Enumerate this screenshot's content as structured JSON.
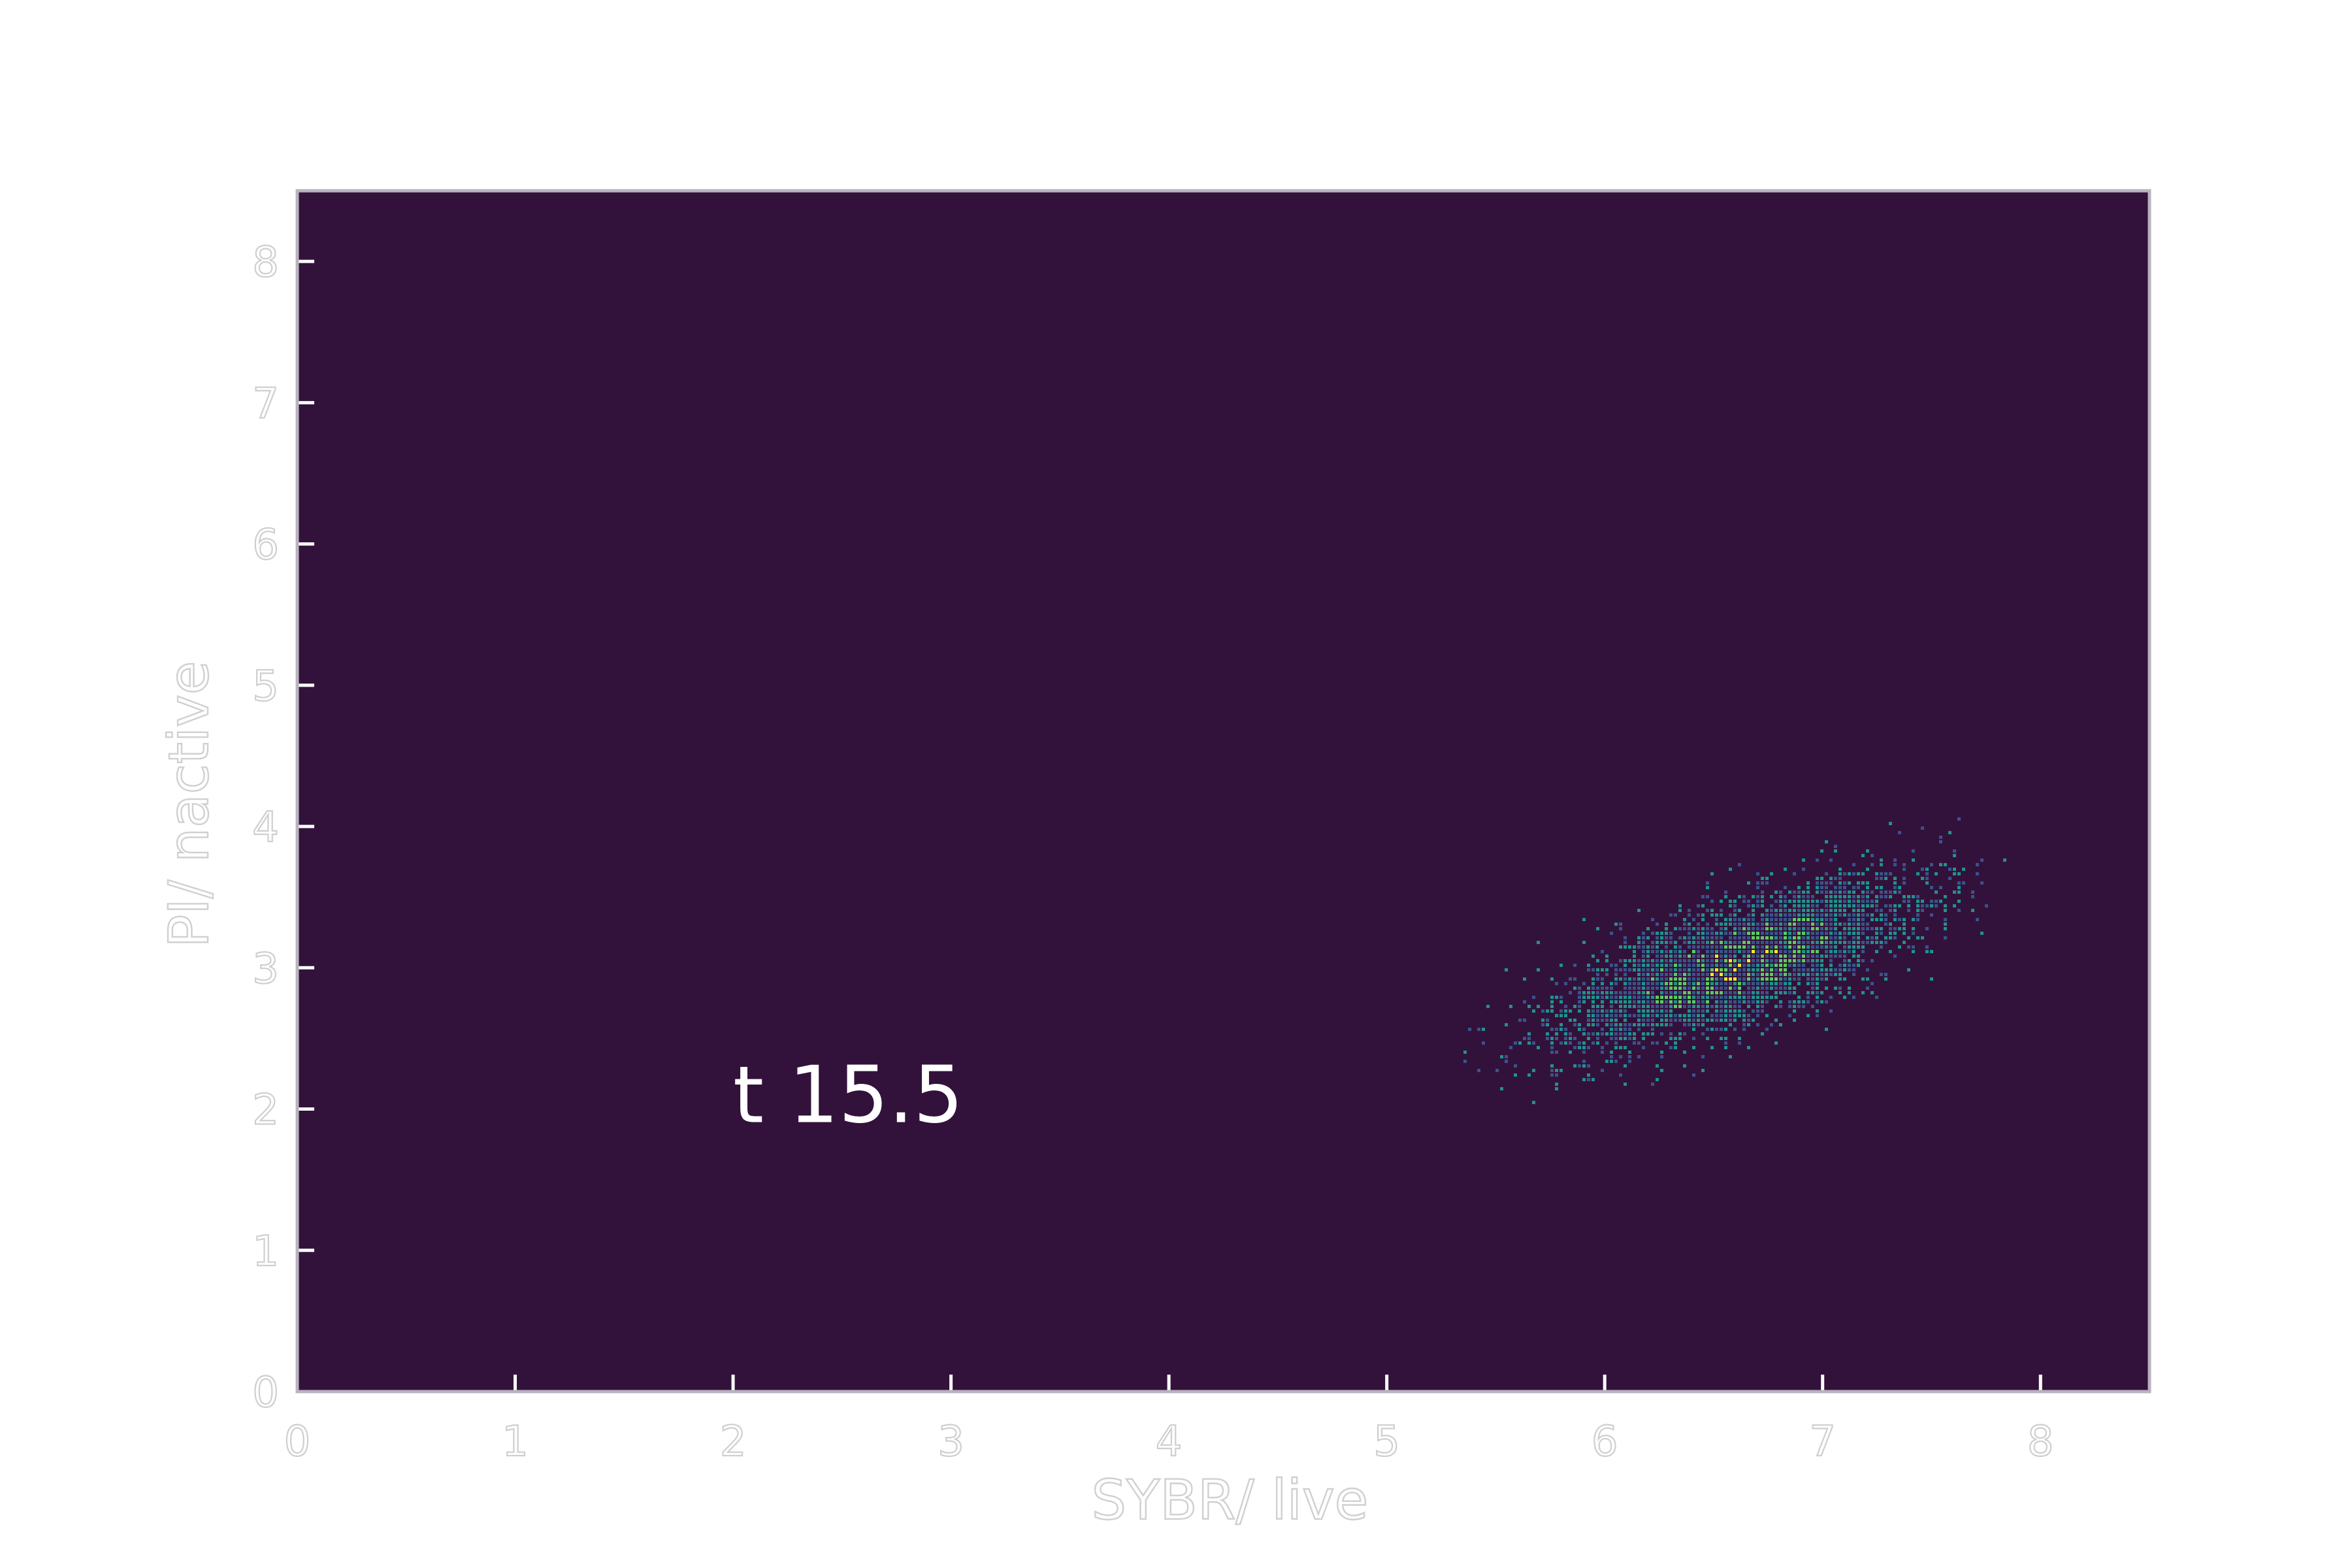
{
  "chart_data": {
    "type": "heatmap",
    "title": "",
    "xlabel": "SYBR/ live",
    "ylabel": "PI/ nactive",
    "xlim": [
      0,
      8.5
    ],
    "ylim": [
      0,
      8.5
    ],
    "xticks": [
      0,
      1,
      2,
      3,
      4,
      5,
      6,
      7,
      8
    ],
    "yticks": [
      0,
      1,
      2,
      3,
      4,
      5,
      6,
      7,
      8
    ],
    "annotation": {
      "text": "t 15.5",
      "x": 2.0,
      "y": 2.0
    },
    "grid": false,
    "cluster": {
      "center": [
        6.6,
        3.05
      ],
      "spread_major": 0.45,
      "spread_minor": 0.18,
      "angle_deg": 33,
      "x_range": [
        5.0,
        8.0
      ],
      "y_range": [
        1.9,
        4.6
      ]
    },
    "colors": {
      "background": "#32123a",
      "frame": "#b9b3bf",
      "ticks": "#ffffff",
      "low": "#3b528b",
      "mid": "#21918c",
      "high": "#5ec962",
      "peak": "#fde725"
    }
  }
}
